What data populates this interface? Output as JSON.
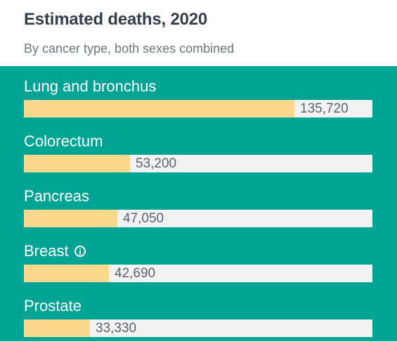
{
  "header": {
    "title": "Estimated deaths, 2020",
    "subtitle": "By cancer type, both sexes combined"
  },
  "colors": {
    "panel": "#00a495",
    "bar": "#fad98e",
    "track": "#f2f2f2"
  },
  "chart_data": {
    "type": "bar",
    "orientation": "horizontal",
    "title": "Estimated deaths, 2020",
    "subtitle": "By cancer type, both sexes combined",
    "categories": [
      "Lung and bronchus",
      "Colorectum",
      "Pancreas",
      "Breast",
      "Prostate"
    ],
    "values": [
      135720,
      53200,
      47050,
      42690,
      33330
    ],
    "value_labels": [
      "135,720",
      "53,200",
      "47,050",
      "42,690",
      "33,330"
    ],
    "info_icon_on": [
      "Breast"
    ],
    "xlim": [
      0,
      175000
    ],
    "grid": false,
    "legend": "none"
  }
}
